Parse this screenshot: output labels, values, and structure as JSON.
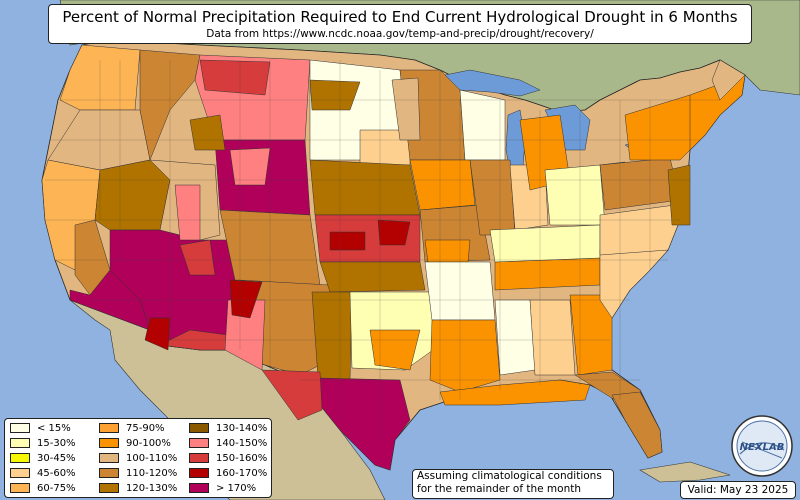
{
  "title": "Percent of Normal Precipitation Required to End Current Hydrological Drought in 6 Months",
  "subtitle": "Data from https://www.ncdc.noaa.gov/temp-and-precip/drought/recovery/",
  "note": [
    "Assuming climatological conditions",
    "for the remainder of the month"
  ],
  "valid": "Valid: May 23 2025",
  "logo_text": "NEXLAB",
  "colors": {
    "ocean": "#8fb2e0",
    "land_outside": "#cdbf96",
    "canada": "#a8b88a",
    "great_lakes": "#6c9bd8"
  },
  "legend": [
    {
      "label": "< 15%",
      "color": "#ffffe5"
    },
    {
      "label": "15-30%",
      "color": "#ffffb4"
    },
    {
      "label": "30-45%",
      "color": "#f7f700"
    },
    {
      "label": "45-60%",
      "color": "#fdd08f"
    },
    {
      "label": "60-75%",
      "color": "#fdb455"
    },
    {
      "label": "75-90%",
      "color": "#fca132"
    },
    {
      "label": "90-100%",
      "color": "#fb9200"
    },
    {
      "label": "100-110%",
      "color": "#e2b680"
    },
    {
      "label": "110-120%",
      "color": "#cc8533"
    },
    {
      "label": "120-130%",
      "color": "#b07300"
    },
    {
      "label": "130-140%",
      "color": "#8b5a00"
    },
    {
      "label": "140-150%",
      "color": "#ff8080"
    },
    {
      "label": "150-160%",
      "color": "#d63c3c"
    },
    {
      "label": "160-170%",
      "color": "#b30000"
    },
    {
      "label": "> 170%",
      "color": "#b0005a"
    }
  ]
}
